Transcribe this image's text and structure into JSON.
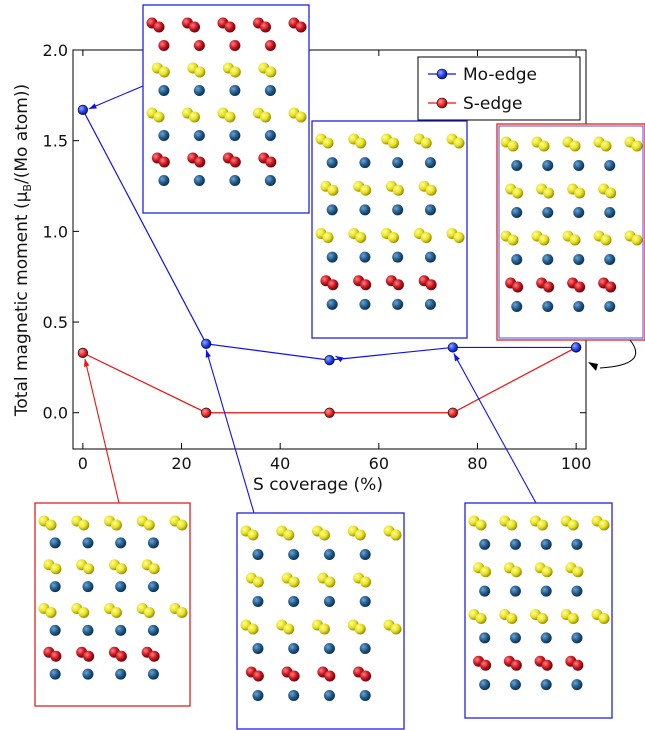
{
  "chart_data": {
    "type": "line",
    "xlabel": "S coverage (%)",
    "ylabel_main": "Total magnetic moment (μ",
    "ylabel_sub": "B",
    "ylabel_tail": "/(Mo atom))",
    "xlim": [
      -2,
      102
    ],
    "ylim": [
      -0.2,
      2.0
    ],
    "xticks": [
      "0",
      "20",
      "40",
      "60",
      "80",
      "100"
    ],
    "xtick_values": [
      0,
      20,
      40,
      60,
      80,
      100
    ],
    "yticks": [
      "0.0",
      "0.5",
      "1.0",
      "1.5",
      "2.0"
    ],
    "ytick_values": [
      0.0,
      0.5,
      1.0,
      1.5,
      2.0
    ],
    "x": [
      0,
      25,
      50,
      75,
      100
    ],
    "series": [
      {
        "name": "Mo-edge",
        "color": "#1111ee",
        "marker_color": "#1a3cf0",
        "values": [
          1.67,
          0.38,
          0.29,
          0.36,
          0.36
        ]
      },
      {
        "name": "S-edge",
        "color": "#ee1111",
        "marker_color": "#ee2222",
        "values": [
          0.33,
          0.0,
          0.0,
          0.0,
          0.36
        ]
      }
    ],
    "legend_position": "top-right"
  },
  "colors": {
    "sulfur": "#e8e020",
    "molybdenum": "#1f5a8c",
    "spin_density": "#c8141e",
    "frame_blue": "#2222dd",
    "frame_red": "#dd2222"
  }
}
